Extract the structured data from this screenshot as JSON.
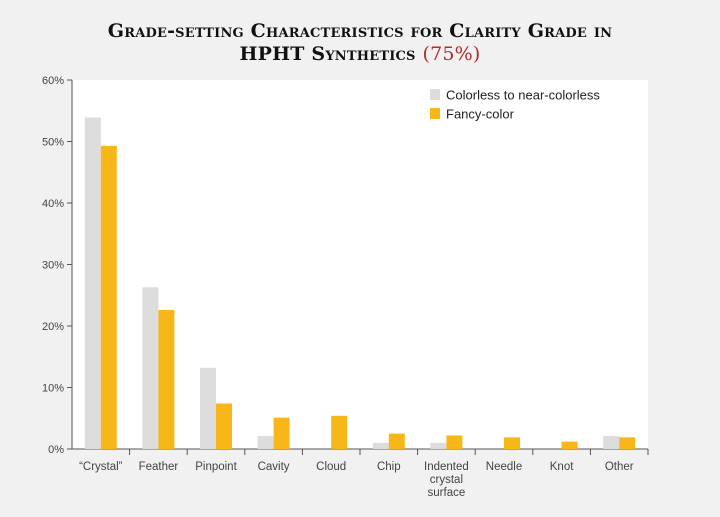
{
  "chart_data": {
    "type": "bar",
    "title_line_1": "Grade-setting Characteristics for Clarity Grade in",
    "title_line_2": "HPHT Synthetics",
    "title_accent": "(75%)",
    "categories": [
      "“Crystal”",
      "Feather",
      "Pinpoint",
      "Cavity",
      "Cloud",
      "Chip",
      "Indented crystal surface",
      "Needle",
      "Knot",
      "Other"
    ],
    "category_label_lines": [
      [
        "“Crystal”"
      ],
      [
        "Feather"
      ],
      [
        "Pinpoint"
      ],
      [
        "Cavity"
      ],
      [
        "Cloud"
      ],
      [
        "Chip"
      ],
      [
        "Indented",
        "crystal",
        "surface"
      ],
      [
        "Needle"
      ],
      [
        "Knot"
      ],
      [
        "Other"
      ]
    ],
    "series": [
      {
        "name": "Colorless to near-colorless",
        "color": "#dcdcdc",
        "values": [
          53.9,
          26.3,
          13.2,
          2.1,
          0,
          1.0,
          1.0,
          0,
          0,
          2.1
        ]
      },
      {
        "name": "Fancy-color",
        "color": "#f7b718",
        "values": [
          49.3,
          22.6,
          7.4,
          5.1,
          5.4,
          2.5,
          2.2,
          1.9,
          1.2,
          1.9
        ]
      }
    ],
    "yticks": [
      "0%",
      "10%",
      "20%",
      "30%",
      "40%",
      "50%",
      "60%"
    ],
    "ylim": [
      0,
      60
    ],
    "xlabel": "",
    "ylabel": "",
    "legend_position": "top-right",
    "grid": false
  }
}
